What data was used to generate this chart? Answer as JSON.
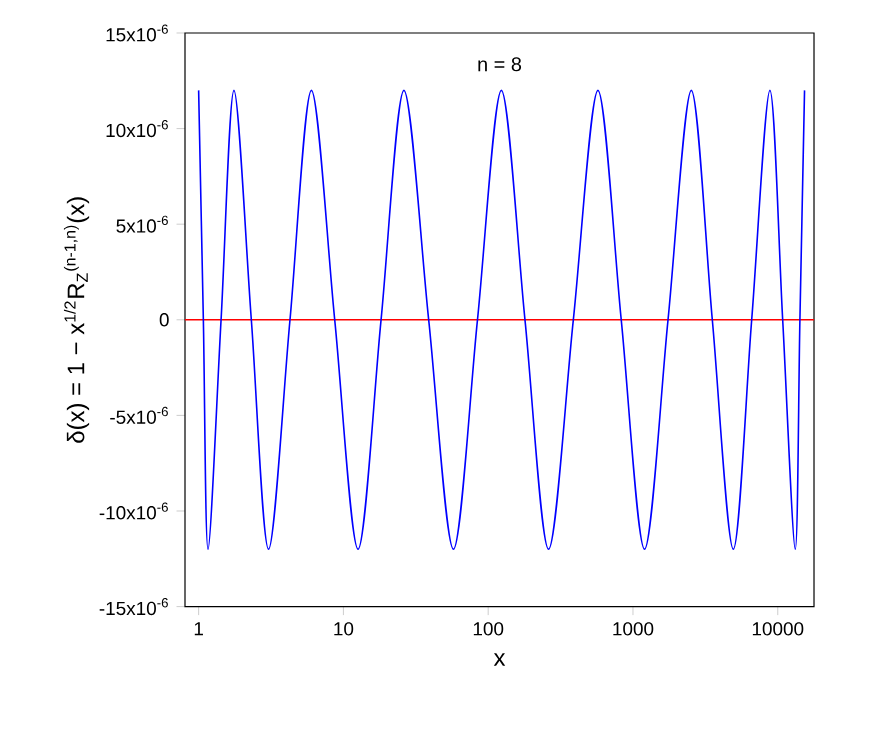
{
  "chart_data": {
    "type": "line",
    "xlabel": "x",
    "ylabel": "δ(x) = 1 − x$^{1/2}$R$_{Z}$$^{(n-1,n)}$(x)",
    "annotations": [
      "n = 8"
    ],
    "log": "x",
    "grid": false,
    "marker": "none",
    "line_style": "solid",
    "xlim": [
      0.805,
      17800
    ],
    "xticks": [
      1,
      10,
      100,
      1000,
      10000
    ],
    "ylim": [
      -1.5e-05,
      1.5e-05
    ],
    "yticks": [
      {
        "value": -1.5e-05,
        "label": "-15x10$^{-6}$"
      },
      {
        "value": -1e-05,
        "label": "-10x10$^{-6}$"
      },
      {
        "value": -5e-06,
        "label": "-5x10$^{-6}$"
      },
      0,
      {
        "value": 5e-06,
        "label": "5x10$^{-6}$"
      },
      {
        "value": 1e-05,
        "label": "10x10$^{-6}$"
      },
      {
        "value": 1.5e-05,
        "label": "15x10$^{-6}$"
      }
    ],
    "ref_lines": [
      {
        "axis": "y",
        "value": 0,
        "color": "#ff0000"
      }
    ],
    "series": [
      {
        "color": "#0000ff",
        "x": [
          1,
          1.078,
          1.161,
          1.429,
          1.754,
          2.312,
          3.041,
          4.276,
          6.012,
          8.71,
          12.62,
          18.2,
          26.18,
          38.82,
          57.54,
          84.33,
          123.3,
          179.5,
          261.2,
          387.3,
          572.8,
          829.8,
          1202,
          1746,
          2529,
          3532,
          4932,
          6607,
          8831,
          10814,
          13213,
          14223,
          15311
        ],
        "values": [
          1.2e-05,
          0,
          -1.2e-05,
          0,
          1.2e-05,
          0,
          -1.2e-05,
          0,
          1.2e-05,
          0,
          -1.2e-05,
          0,
          1.2e-05,
          0,
          -1.2e-05,
          0,
          1.2e-05,
          0,
          -1.2e-05,
          0,
          1.2e-05,
          0,
          -1.2e-05,
          0,
          1.2e-05,
          0,
          -1.2e-05,
          0,
          1.2e-05,
          0,
          -1.2e-05,
          0,
          1.2e-05
        ]
      }
    ]
  }
}
